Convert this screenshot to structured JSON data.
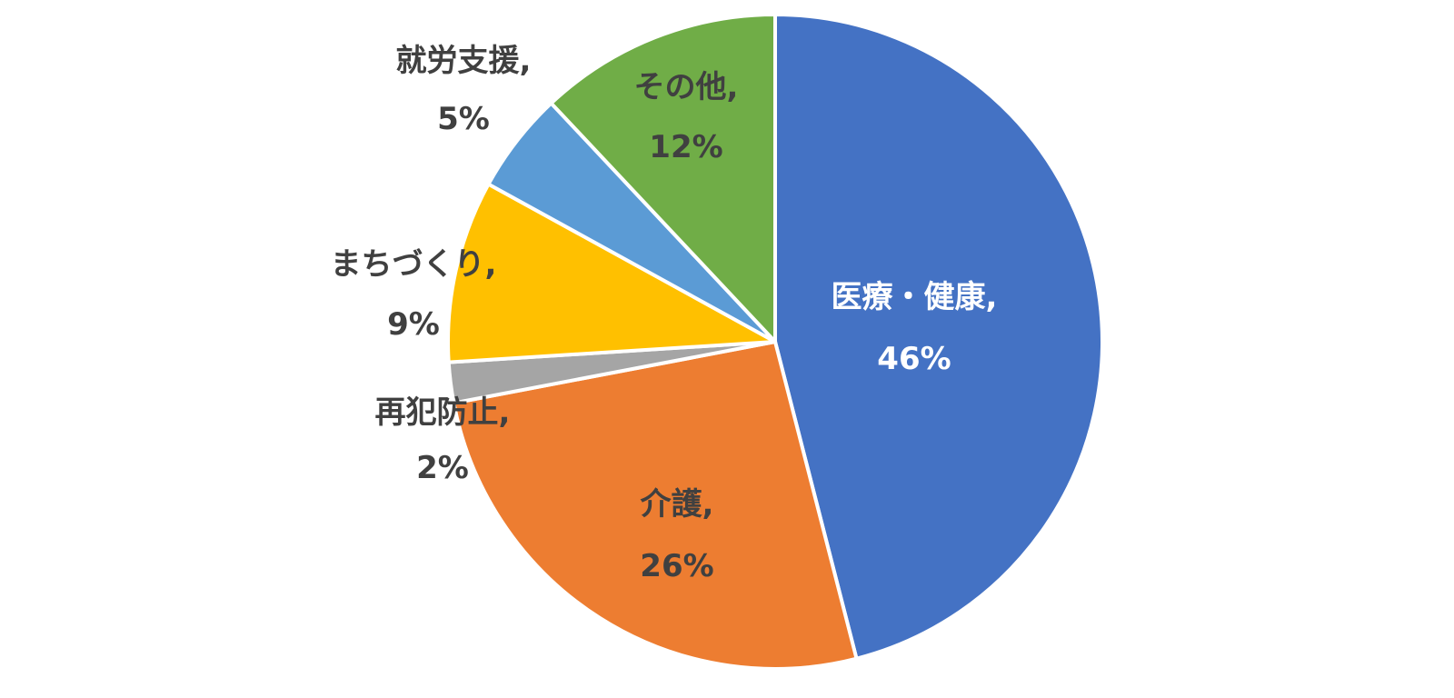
{
  "chart_data": {
    "type": "pie",
    "title": "",
    "start_angle_deg": 0,
    "direction": "clockwise",
    "slices": [
      {
        "label": "医療・健康,",
        "value_label": "46%",
        "value": 46,
        "color": "#4472C4",
        "label_color": "#ffffff"
      },
      {
        "label": "介護,",
        "value_label": "26%",
        "value": 26,
        "color": "#ED7D31",
        "label_color": "#404040"
      },
      {
        "label": "再犯防止,",
        "value_label": "2%",
        "value": 2,
        "color": "#A5A5A5",
        "label_color": "#404040"
      },
      {
        "label": "まちづくり,",
        "value_label": "9%",
        "value": 9,
        "color": "#FFC000",
        "label_color": "#404040"
      },
      {
        "label": "就労支援,",
        "value_label": "5%",
        "value": 5,
        "color": "#5B9BD5",
        "label_color": "#404040"
      },
      {
        "label": "その他,",
        "value_label": "12%",
        "value": 12,
        "color": "#70AD47",
        "label_color": "#404040"
      }
    ]
  }
}
